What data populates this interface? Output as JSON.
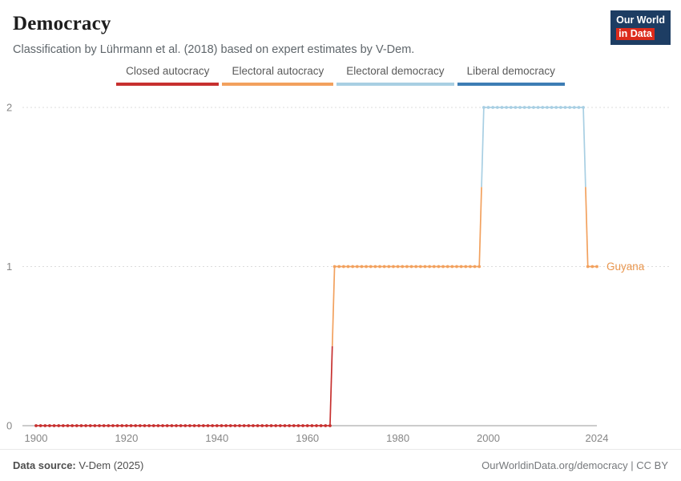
{
  "header": {
    "title": "Democracy",
    "subtitle": "Classification by Lührmann et al. (2018) based on expert estimates by V-Dem.",
    "logo": {
      "line1": "Our World",
      "line2": "in Data",
      "bg_color": "#1d3d63",
      "accent_color": "#dc2b1c"
    }
  },
  "legend": {
    "items": [
      {
        "label": "Closed autocracy",
        "color": "#c7302f"
      },
      {
        "label": "Electoral autocracy",
        "color": "#f2a15e"
      },
      {
        "label": "Electoral democracy",
        "color": "#a8cfe3"
      },
      {
        "label": "Liberal democracy",
        "color": "#3d7db4"
      }
    ]
  },
  "chart_data": {
    "type": "line",
    "title": "Democracy",
    "entity": "Guyana",
    "x_range": [
      1900,
      2024
    ],
    "y_range": [
      0,
      2
    ],
    "x_ticks": [
      1900,
      1920,
      1940,
      1960,
      1980,
      2000,
      2024
    ],
    "y_ticks": [
      0,
      2,
      1
    ],
    "grid": true,
    "value_scale": [
      "Closed autocracy",
      "Electoral autocracy",
      "Electoral democracy",
      "Liberal democracy"
    ],
    "segments": [
      {
        "start_year": 1900,
        "end_year": 1965,
        "value": 0,
        "category": "Closed autocracy",
        "color": "#c7302f"
      },
      {
        "start_year": 1966,
        "end_year": 1998,
        "value": 1,
        "category": "Electoral autocracy",
        "color": "#f2a15e"
      },
      {
        "start_year": 1999,
        "end_year": 2021,
        "value": 2,
        "category": "Electoral democracy",
        "color": "#a8cfe3"
      },
      {
        "start_year": 2022,
        "end_year": 2024,
        "value": 1,
        "category": "Electoral autocracy",
        "color": "#f2a15e"
      }
    ],
    "series_label": {
      "text": "Guyana",
      "color": "#e9964e",
      "value_at_end": 1
    }
  },
  "footer": {
    "source_label": "Data source:",
    "source_value": " V-Dem (2025)",
    "credit": "OurWorldinData.org/democracy | CC BY"
  }
}
